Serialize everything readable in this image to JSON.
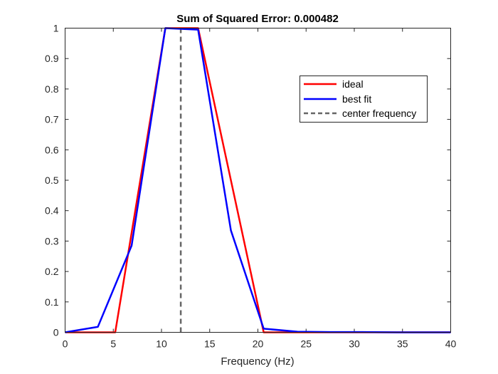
{
  "chart_data": {
    "type": "line",
    "title": "Sum of Squared Error: 0.000482",
    "xlabel": "Frequency (Hz)",
    "ylabel": "",
    "xlim": [
      0,
      40
    ],
    "ylim": [
      0,
      1
    ],
    "xticks": [
      0,
      5,
      10,
      15,
      20,
      25,
      30,
      35,
      40
    ],
    "xtick_labels": [
      "0",
      "5",
      "10",
      "15",
      "20",
      "25",
      "30",
      "35",
      "40"
    ],
    "yticks": [
      0,
      0.1,
      0.2,
      0.3,
      0.4,
      0.5,
      0.6,
      0.7,
      0.8,
      0.9,
      1
    ],
    "ytick_labels": [
      "0",
      "0.1",
      "0.2",
      "0.3",
      "0.4",
      "0.5",
      "0.6",
      "0.7",
      "0.8",
      "0.9",
      "1"
    ],
    "grid": false,
    "legend_position": "top-right",
    "series": [
      {
        "name": "ideal",
        "color": "#ff0000",
        "style": "solid",
        "x": [
          0,
          5.2,
          10.4,
          13.8,
          20.6,
          40
        ],
        "y": [
          0,
          0,
          1,
          1,
          0,
          0
        ]
      },
      {
        "name": "best fit",
        "color": "#0000ff",
        "style": "solid",
        "x": [
          0,
          3.4,
          6.9,
          10.4,
          13.8,
          17.2,
          20.6,
          24.1,
          27.5,
          30.9,
          34.4,
          37.8,
          40
        ],
        "y": [
          0,
          0.018,
          0.285,
          1.0,
          0.995,
          0.335,
          0.012,
          0.002,
          0.001,
          0.001,
          0.0,
          0.0,
          0.0
        ]
      },
      {
        "name": "center frequency",
        "color": "#666666",
        "style": "dashed",
        "x": [
          12,
          12
        ],
        "y": [
          0,
          1
        ]
      }
    ]
  }
}
